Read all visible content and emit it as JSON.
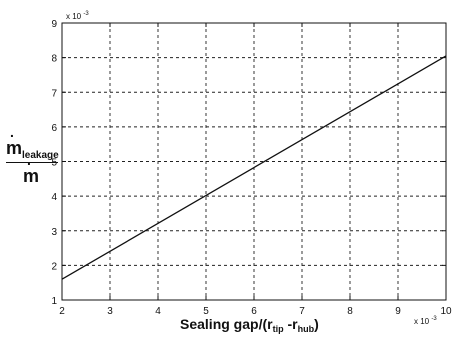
{
  "chart_data": {
    "type": "line",
    "xlim": [
      2,
      10
    ],
    "ylim": [
      1,
      9
    ],
    "xticks": [
      "2",
      "3",
      "4",
      "5",
      "6",
      "7",
      "8",
      "9",
      "10"
    ],
    "yticks": [
      "1",
      "2",
      "3",
      "4",
      "5",
      "6",
      "7",
      "8",
      "9"
    ],
    "x_multiplier": "x 10",
    "x_multiplier_exp": "-3",
    "y_multiplier": "x 10",
    "y_multiplier_exp": "-3",
    "grid": true,
    "series": [
      {
        "x": [
          2,
          10
        ],
        "values": [
          1.6,
          8.05
        ],
        "color": "#111111"
      }
    ],
    "ylabel": {
      "numerator_main": "m",
      "numerator_sub": "leakage",
      "denominator": "m"
    },
    "xlabel": {
      "main": "Sealing gap/(r",
      "sub1": "tip",
      "mid": " -r",
      "sub2": "hub",
      "end": ")"
    }
  }
}
